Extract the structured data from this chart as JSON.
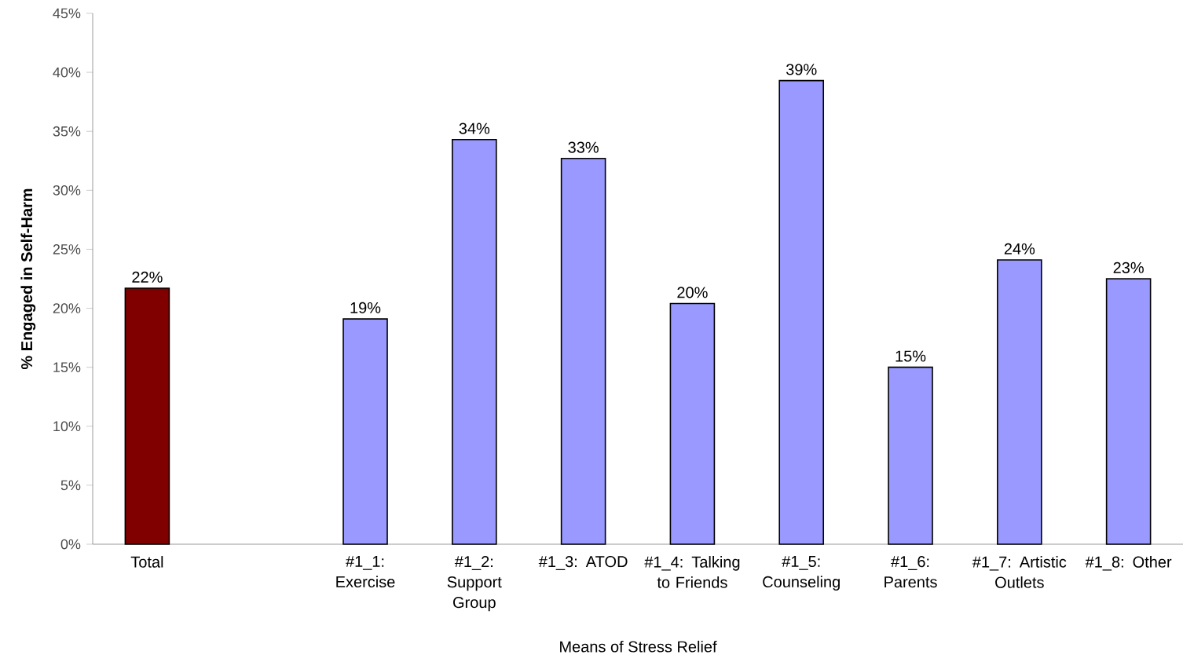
{
  "chart_data": {
    "type": "bar",
    "xlabel": "Means of Stress Relief",
    "ylabel": "% Engaged in Self-Harm",
    "categories": [
      "Total",
      null,
      "#1_1: Exercise",
      "#1_2: Support Group",
      "#1_3: ATOD",
      "#1_4: Talking to Friends",
      "#1_5: Counseling",
      "#1_6: Parents",
      "#1_7: Artistic Outlets",
      "#1_8: Other"
    ],
    "values": [
      21.7,
      null,
      19.1,
      34.3,
      32.7,
      20.4,
      39.3,
      15.0,
      24.1,
      22.5
    ],
    "value_labels": [
      "22%",
      null,
      "19%",
      "34%",
      "33%",
      "20%",
      "39%",
      "15%",
      "24%",
      "23%"
    ],
    "colors": [
      "#800000",
      "#9999ff",
      "#9999ff",
      "#9999ff",
      "#9999ff",
      "#9999ff",
      "#9999ff",
      "#9999ff",
      "#9999ff",
      "#9999ff"
    ],
    "ylim": [
      0,
      45
    ],
    "yticks": [
      {
        "value": 0,
        "label": "0%"
      },
      {
        "value": 5,
        "label": "5%"
      },
      {
        "value": 10,
        "label": "10%"
      },
      {
        "value": 15,
        "label": "15%"
      },
      {
        "value": 20,
        "label": "20%"
      },
      {
        "value": 25,
        "label": "25%"
      },
      {
        "value": 30,
        "label": "30%"
      },
      {
        "value": 35,
        "label": "35%"
      },
      {
        "value": 40,
        "label": "40%"
      },
      {
        "value": 45,
        "label": "45%"
      }
    ],
    "grid": false
  }
}
